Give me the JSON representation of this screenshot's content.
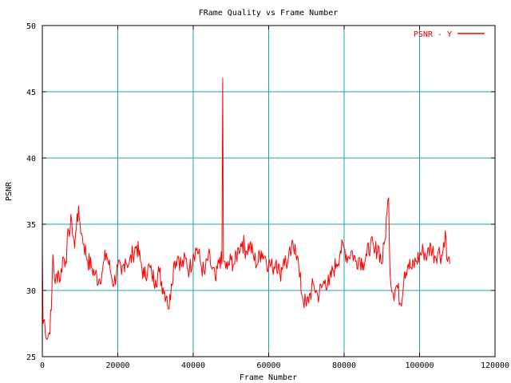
{
  "chart_data": {
    "type": "line",
    "title": "FRame Quality vs Frame Number",
    "xlabel": "Frame Number",
    "ylabel": "PSNR",
    "xlim": [
      0,
      120000
    ],
    "ylim": [
      25,
      50
    ],
    "x_ticks": [
      "0",
      "20000",
      "40000",
      "60000",
      "80000",
      "100000",
      "120000"
    ],
    "y_ticks": [
      "25",
      "30",
      "35",
      "40",
      "45",
      "50"
    ],
    "grid": true,
    "legend_position": "top-right",
    "colors": {
      "series": "#ff0000",
      "grid": "#1aa5a5",
      "axis": "#000000"
    },
    "series": [
      {
        "name": "PSNR - Y",
        "points": [
          [
            0,
            33.5
          ],
          [
            200,
            27.5
          ],
          [
            600,
            27.8
          ],
          [
            1200,
            26.3
          ],
          [
            1800,
            26.8
          ],
          [
            2400,
            28.5
          ],
          [
            2800,
            32.7
          ],
          [
            3400,
            30.5
          ],
          [
            4200,
            31.5
          ],
          [
            4800,
            30.8
          ],
          [
            5400,
            32.5
          ],
          [
            6200,
            32.2
          ],
          [
            7000,
            34.5
          ],
          [
            7800,
            35.2
          ],
          [
            8600,
            33.2
          ],
          [
            9200,
            35.8
          ],
          [
            9800,
            35.5
          ],
          [
            10400,
            34.3
          ],
          [
            11000,
            33.5
          ],
          [
            12000,
            32.3
          ],
          [
            13000,
            31.8
          ],
          [
            14000,
            31.2
          ],
          [
            15000,
            30.8
          ],
          [
            16000,
            31.6
          ],
          [
            17000,
            32.8
          ],
          [
            18000,
            31.5
          ],
          [
            19000,
            30.5
          ],
          [
            20000,
            31.8
          ],
          [
            21000,
            31.2
          ],
          [
            22000,
            32.4
          ],
          [
            23000,
            32.0
          ],
          [
            24000,
            32.8
          ],
          [
            25000,
            33.4
          ],
          [
            26000,
            32.2
          ],
          [
            27000,
            31.0
          ],
          [
            28000,
            31.8
          ],
          [
            29000,
            31.2
          ],
          [
            30000,
            30.8
          ],
          [
            31000,
            31.4
          ],
          [
            32000,
            30.2
          ],
          [
            33000,
            29.6
          ],
          [
            33600,
            28.6
          ],
          [
            34200,
            30.5
          ],
          [
            35000,
            32.2
          ],
          [
            36000,
            32.6
          ],
          [
            37000,
            31.8
          ],
          [
            38000,
            32.4
          ],
          [
            39000,
            31.5
          ],
          [
            40000,
            32.8
          ],
          [
            41000,
            33.2
          ],
          [
            42000,
            32.0
          ],
          [
            43000,
            31.2
          ],
          [
            44000,
            32.6
          ],
          [
            45000,
            31.6
          ],
          [
            46000,
            30.7
          ],
          [
            47000,
            32.5
          ],
          [
            47600,
            32.0
          ],
          [
            47800,
            46.0
          ],
          [
            48000,
            32.2
          ],
          [
            49000,
            31.6
          ],
          [
            50000,
            32.3
          ],
          [
            51000,
            32.0
          ],
          [
            52000,
            33.2
          ],
          [
            53000,
            33.7
          ],
          [
            54000,
            33.0
          ],
          [
            55000,
            33.5
          ],
          [
            56000,
            32.5
          ],
          [
            57000,
            32.0
          ],
          [
            58000,
            33.0
          ],
          [
            59000,
            32.6
          ],
          [
            60000,
            32.0
          ],
          [
            61000,
            31.7
          ],
          [
            62000,
            32.3
          ],
          [
            63000,
            31.2
          ],
          [
            64000,
            32.4
          ],
          [
            65000,
            32.0
          ],
          [
            66000,
            33.0
          ],
          [
            67000,
            33.5
          ],
          [
            67600,
            32.6
          ],
          [
            68200,
            31.0
          ],
          [
            69000,
            29.5
          ],
          [
            70000,
            28.8
          ],
          [
            71000,
            29.8
          ],
          [
            72000,
            30.4
          ],
          [
            73000,
            29.6
          ],
          [
            74000,
            30.2
          ],
          [
            75000,
            30.8
          ],
          [
            76000,
            30.4
          ],
          [
            77000,
            31.5
          ],
          [
            78000,
            32.0
          ],
          [
            79000,
            33.0
          ],
          [
            80000,
            33.2
          ],
          [
            81000,
            32.5
          ],
          [
            82000,
            33.0
          ],
          [
            83000,
            32.2
          ],
          [
            84000,
            32.5
          ],
          [
            85000,
            32.1
          ],
          [
            86000,
            32.6
          ],
          [
            87000,
            33.6
          ],
          [
            88000,
            32.8
          ],
          [
            89000,
            33.4
          ],
          [
            90000,
            32.0
          ],
          [
            90800,
            33.8
          ],
          [
            91400,
            36.0
          ],
          [
            91800,
            37.0
          ],
          [
            92200,
            31.2
          ],
          [
            93000,
            29.8
          ],
          [
            94000,
            30.4
          ],
          [
            95000,
            29.0
          ],
          [
            96000,
            31.4
          ],
          [
            97000,
            32.0
          ],
          [
            98000,
            31.6
          ],
          [
            99000,
            32.2
          ],
          [
            100000,
            32.6
          ],
          [
            101000,
            33.0
          ],
          [
            102000,
            32.6
          ],
          [
            103000,
            33.4
          ],
          [
            104000,
            32.6
          ],
          [
            105000,
            33.0
          ],
          [
            106000,
            32.6
          ],
          [
            106800,
            34.5
          ],
          [
            107200,
            32.4
          ],
          [
            108000,
            32.0
          ]
        ]
      }
    ]
  }
}
